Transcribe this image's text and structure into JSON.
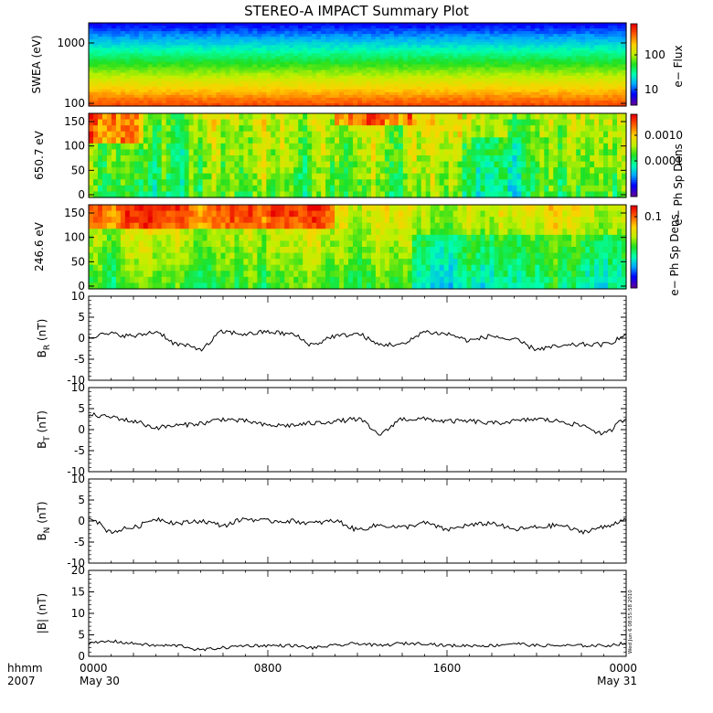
{
  "title": "STEREO-A IMPACT Summary Plot",
  "chart_data": [
    {
      "type": "heatmap",
      "ylabel": "SWEA (eV)",
      "yscale": "log",
      "ylim": [
        100,
        2000
      ],
      "yticks": [
        "1000",
        "100"
      ],
      "colorbar": {
        "label": "e− Flux",
        "scale": "log",
        "ticks": [
          "100",
          "10"
        ]
      }
    },
    {
      "type": "heatmap",
      "ylabel": "650.7 eV",
      "ylim": [
        0,
        180
      ],
      "yticks": [
        "150",
        "100",
        "50",
        "0"
      ],
      "colorbar": {
        "label": "e− Ph Sp Dens",
        "scale": "log",
        "ticks": [
          "0.0010",
          "0.0001"
        ]
      }
    },
    {
      "type": "heatmap",
      "ylabel": "246.6 eV",
      "ylim": [
        0,
        180
      ],
      "yticks": [
        "150",
        "100",
        "50",
        "0"
      ],
      "colorbar": {
        "label": "e− Ph Sp Dens",
        "scale": "log",
        "ticks": [
          "0.1"
        ]
      }
    },
    {
      "type": "line",
      "ylabel": "B",
      "ylabel_sub": "R",
      "ylabel_unit": "(nT)",
      "ylim": [
        -10,
        10
      ],
      "yticks": [
        "10",
        "5",
        "0",
        "-5",
        "-10"
      ],
      "x": [
        0,
        1,
        2,
        3,
        4,
        5,
        6,
        7,
        8,
        9,
        10,
        11,
        12,
        13,
        14,
        15,
        16,
        17,
        18,
        19,
        20,
        21,
        22,
        23,
        24
      ],
      "values": [
        0.5,
        1.0,
        0.5,
        1.5,
        -1.5,
        -2.5,
        1.5,
        1.0,
        1.5,
        1.0,
        -1.5,
        0.5,
        1.0,
        -1.5,
        -1.5,
        1.5,
        1.0,
        -0.5,
        0.5,
        -0.5,
        -2.5,
        -2.0,
        -1.5,
        -1.5,
        0.5
      ]
    },
    {
      "type": "line",
      "ylabel": "B",
      "ylabel_sub": "T",
      "ylabel_unit": "(nT)",
      "ylim": [
        -10,
        10
      ],
      "yticks": [
        "10",
        "5",
        "0",
        "-5",
        "-10"
      ],
      "x": [
        0,
        1,
        2,
        3,
        4,
        5,
        6,
        7,
        8,
        9,
        10,
        11,
        12,
        13,
        14,
        15,
        16,
        17,
        18,
        19,
        20,
        21,
        22,
        23,
        24
      ],
      "values": [
        3.5,
        3.0,
        2.0,
        0.5,
        1.0,
        1.5,
        2.5,
        2.0,
        1.0,
        1.0,
        1.5,
        2.0,
        2.5,
        -1.0,
        2.5,
        2.5,
        2.0,
        2.0,
        1.5,
        2.0,
        2.5,
        2.0,
        1.0,
        -1.0,
        2.5
      ]
    },
    {
      "type": "line",
      "ylabel": "B",
      "ylabel_sub": "N",
      "ylabel_unit": "(nT)",
      "ylim": [
        -10,
        10
      ],
      "yticks": [
        "10",
        "5",
        "0",
        "-5",
        "-10"
      ],
      "x": [
        0,
        1,
        2,
        3,
        4,
        5,
        6,
        7,
        8,
        9,
        10,
        11,
        12,
        13,
        14,
        15,
        16,
        17,
        18,
        19,
        20,
        21,
        22,
        23,
        24
      ],
      "values": [
        1.0,
        -2.5,
        -1.5,
        0.5,
        -0.5,
        0.0,
        -1.0,
        0.5,
        0.0,
        0.0,
        -0.5,
        0.0,
        -2.0,
        -1.0,
        -1.5,
        -0.5,
        -2.0,
        -1.0,
        -0.5,
        -2.0,
        -1.5,
        -1.0,
        -2.5,
        -1.5,
        0.5
      ]
    },
    {
      "type": "line",
      "ylabel": "|B|",
      "ylabel_unit": "(nT)",
      "ylim": [
        0,
        20
      ],
      "yticks": [
        "20",
        "15",
        "10",
        "5",
        "0"
      ],
      "x": [
        0,
        1,
        2,
        3,
        4,
        5,
        6,
        7,
        8,
        9,
        10,
        11,
        12,
        13,
        14,
        15,
        16,
        17,
        18,
        19,
        20,
        21,
        22,
        23,
        24
      ],
      "values": [
        3.0,
        3.5,
        3.0,
        2.5,
        2.5,
        1.5,
        2.0,
        2.5,
        2.5,
        2.5,
        2.0,
        2.5,
        3.0,
        2.5,
        3.0,
        3.0,
        2.5,
        2.5,
        2.5,
        3.0,
        2.5,
        2.5,
        2.5,
        2.5,
        3.0
      ]
    }
  ],
  "xaxis": {
    "labels": [
      {
        "hour": 0,
        "top": "0000",
        "bottom": "May 30"
      },
      {
        "hour": 8,
        "top": "0800",
        "bottom": ""
      },
      {
        "hour": 16,
        "top": "1600",
        "bottom": ""
      },
      {
        "hour": 24,
        "top": "0000",
        "bottom": "May 31"
      }
    ],
    "left_top": "hhmm",
    "left_bottom": "2007"
  },
  "timestamp": "Wed Jun  6 08:55:58 2010",
  "colors": {
    "background": "#ffffff",
    "line": "#000000",
    "colormap": [
      "#5a00a0",
      "#0000ff",
      "#00a8ff",
      "#00ffb0",
      "#20e020",
      "#c0f000",
      "#ffd000",
      "#ff6000",
      "#e80000"
    ]
  }
}
